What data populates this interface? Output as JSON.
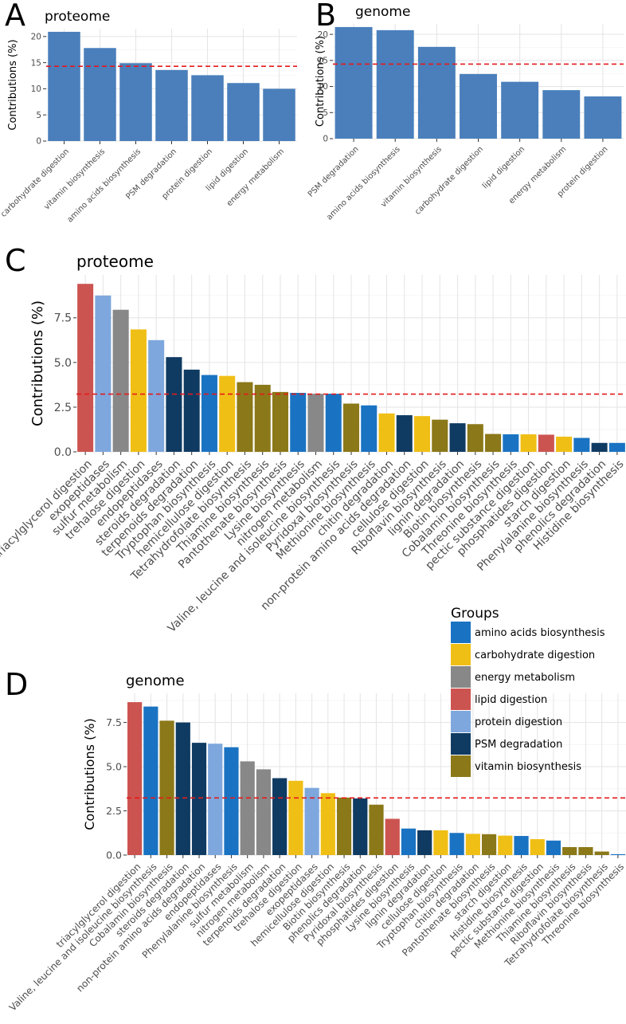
{
  "chart_data": [
    {
      "panel": "A",
      "type": "bar",
      "title": "proteome",
      "ylabel": "Contributions (%)",
      "xlabel": "",
      "ylim": [
        0,
        21.5
      ],
      "yticks": [
        0,
        5,
        10,
        15,
        20
      ],
      "threshold": 14.3,
      "categories": [
        "carbohydrate digestion",
        "vitamin biosynthesis",
        "amino acids biosynthesis",
        "PSM degradation",
        "protein digestion",
        "lipid digestion",
        "energy metabolism"
      ],
      "values": [
        20.9,
        17.8,
        14.9,
        13.6,
        12.6,
        11.1,
        10.0
      ],
      "bar_color": "#4a7fbb"
    },
    {
      "panel": "B",
      "type": "bar",
      "title": "genome",
      "ylabel": "Contributions (%)",
      "xlabel": "",
      "ylim": [
        0,
        22.0
      ],
      "yticks": [
        0,
        5,
        10,
        15,
        20
      ],
      "threshold": 14.3,
      "categories": [
        "PSM degradation",
        "amino acids biosynthesis",
        "vitamin biosynthesis",
        "carbohydrate digestion",
        "lipid digestion",
        "energy metabolism",
        "protein digestion"
      ],
      "values": [
        21.4,
        20.8,
        17.6,
        12.4,
        10.9,
        9.3,
        8.1
      ],
      "bar_color": "#4a7fbb"
    },
    {
      "panel": "C",
      "type": "bar",
      "title": "proteome",
      "ylabel": "Contributions (%)",
      "xlabel": "",
      "ylim": [
        0,
        9.9
      ],
      "yticks": [
        0,
        2.5,
        5,
        7.5
      ],
      "ytick_labels": [
        "0.0",
        "2.5",
        "5.0",
        "7.5"
      ],
      "threshold": 3.23,
      "categories": [
        "triacylglycerol digestion",
        "exopeptidases",
        "sulfur metabolism",
        "trehalose digestion",
        "endopeptidases",
        "steroids degradation",
        "terpenoids degradation",
        "Tryptophan biosynthesis",
        "hemicellulose digestion",
        "Tetrahydrofolate biosynthesis",
        "Thiamine biosynthesis",
        "Pantothenate biosynthesis",
        "Lysine biosynthesis",
        "nitrogen metabolism",
        "Valine, leucine and isoleucine biosynthesis",
        "Pyridoxal biosynthesis",
        "Methionine biosynthesis",
        "chitin degradation",
        "non-protein amino acids degradation",
        "cellulose digestion",
        "Riboflavin biosynthesis",
        "lignin degradation",
        "Biotin biosynthesis",
        "Cobalamin biosynthesis",
        "Threonine biosynthesis",
        "pectic substance digestion",
        "phosphatides digestion",
        "starch digestion",
        "Phenylalanine biosynthesis",
        "phenolics degradation",
        "Histidine biosynthesis"
      ],
      "values": [
        9.4,
        8.75,
        7.95,
        6.85,
        6.25,
        5.3,
        4.6,
        4.3,
        4.25,
        3.9,
        3.75,
        3.35,
        3.3,
        3.25,
        3.25,
        2.7,
        2.6,
        2.15,
        2.05,
        2.0,
        1.8,
        1.6,
        1.55,
        1.0,
        0.98,
        0.98,
        0.96,
        0.85,
        0.78,
        0.5,
        0.5
      ],
      "groups": [
        "lipid digestion",
        "protein digestion",
        "energy metabolism",
        "carbohydrate digestion",
        "protein digestion",
        "PSM degradation",
        "PSM degradation",
        "amino acids biosynthesis",
        "carbohydrate digestion",
        "vitamin biosynthesis",
        "vitamin biosynthesis",
        "vitamin biosynthesis",
        "amino acids biosynthesis",
        "energy metabolism",
        "amino acids biosynthesis",
        "vitamin biosynthesis",
        "amino acids biosynthesis",
        "carbohydrate digestion",
        "PSM degradation",
        "carbohydrate digestion",
        "vitamin biosynthesis",
        "PSM degradation",
        "vitamin biosynthesis",
        "vitamin biosynthesis",
        "amino acids biosynthesis",
        "carbohydrate digestion",
        "lipid digestion",
        "carbohydrate digestion",
        "amino acids biosynthesis",
        "PSM degradation",
        "amino acids biosynthesis"
      ]
    },
    {
      "panel": "D",
      "type": "bar",
      "title": "genome",
      "ylabel": "Contributions (%)",
      "xlabel": "",
      "ylim": [
        0,
        9.15
      ],
      "yticks": [
        0,
        2.5,
        5,
        7.5
      ],
      "ytick_labels": [
        "0.0",
        "2.5",
        "5.0",
        "7.5"
      ],
      "threshold": 3.23,
      "categories": [
        "triacylglycerol digestion",
        "Valine, leucine and isoleucine biosynthesis",
        "Cobalamin biosynthesis",
        "steroids degradation",
        "non-protein amino acids degradation",
        "endopeptidases",
        "Phenylalanine biosynthesis",
        "sulfur metabolism",
        "nitrogen metabolism",
        "terpenoids degradation",
        "trehalose digestion",
        "exopeptidases",
        "hemicellulose digestion",
        "Biotin biosynthesis",
        "phenolics degradation",
        "Pyridoxal biosynthesis",
        "phosphatides digestion",
        "Lysine biosynthesis",
        "lignin degradation",
        "cellulose digestion",
        "Tryptophan biosynthesis",
        "chitin degradation",
        "Pantothenate biosynthesis",
        "starch digestion",
        "Histidine biosynthesis",
        "pectic substance digestion",
        "Methionine biosynthesis",
        "Thiamine biosynthesis",
        "Riboflavin biosynthesis",
        "Tetrahydrofolate biosynthesis",
        "Threonine biosynthesis"
      ],
      "values": [
        8.65,
        8.4,
        7.6,
        7.5,
        6.35,
        6.3,
        6.1,
        5.3,
        4.85,
        4.35,
        4.2,
        3.8,
        3.5,
        3.25,
        3.2,
        2.85,
        2.05,
        1.5,
        1.4,
        1.4,
        1.25,
        1.2,
        1.18,
        1.1,
        1.08,
        0.9,
        0.82,
        0.45,
        0.45,
        0.2,
        0.05
      ],
      "groups": [
        "lipid digestion",
        "amino acids biosynthesis",
        "vitamin biosynthesis",
        "PSM degradation",
        "PSM degradation",
        "protein digestion",
        "amino acids biosynthesis",
        "energy metabolism",
        "energy metabolism",
        "PSM degradation",
        "carbohydrate digestion",
        "protein digestion",
        "carbohydrate digestion",
        "vitamin biosynthesis",
        "PSM degradation",
        "vitamin biosynthesis",
        "lipid digestion",
        "amino acids biosynthesis",
        "PSM degradation",
        "carbohydrate digestion",
        "amino acids biosynthesis",
        "carbohydrate digestion",
        "vitamin biosynthesis",
        "carbohydrate digestion",
        "amino acids biosynthesis",
        "carbohydrate digestion",
        "amino acids biosynthesis",
        "vitamin biosynthesis",
        "vitamin biosynthesis",
        "vitamin biosynthesis",
        "amino acids biosynthesis"
      ]
    }
  ],
  "legend": {
    "title": "Groups",
    "items": [
      {
        "label": "amino acids biosynthesis",
        "color": "#1a73c2"
      },
      {
        "label": "carbohydrate digestion",
        "color": "#f0bf16"
      },
      {
        "label": "energy metabolism",
        "color": "#888888"
      },
      {
        "label": "lipid digestion",
        "color": "#cc5450"
      },
      {
        "label": "protein digestion",
        "color": "#7ea7dd"
      },
      {
        "label": "PSM degradation",
        "color": "#0f3b62"
      },
      {
        "label": "vitamin biosynthesis",
        "color": "#8b7818"
      }
    ]
  },
  "threshold_color": "#e41a1c"
}
